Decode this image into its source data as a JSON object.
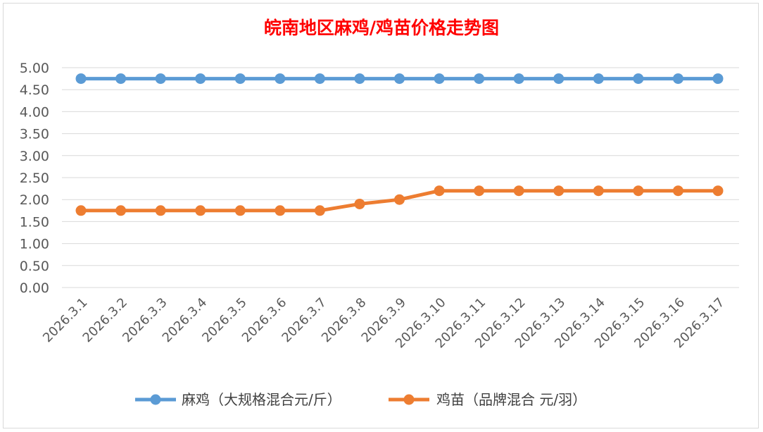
{
  "chart_data": {
    "type": "line",
    "title": "皖南地区麻鸡/鸡苗价格走势图",
    "xlabel": "",
    "ylabel": "",
    "categories": [
      "2026.3.1",
      "2026.3.2",
      "2026.3.3",
      "2026.3.4",
      "2026.3.5",
      "2026.3.6",
      "2026.3.7",
      "2026.3.8",
      "2026.3.9",
      "2026.3.10",
      "2026.3.11",
      "2026.3.12",
      "2026.3.13",
      "2026.3.14",
      "2026.3.15",
      "2026.3.16",
      "2026.3.17"
    ],
    "ylim": [
      0,
      5
    ],
    "yticks": [
      "0.00",
      "0.50",
      "1.00",
      "1.50",
      "2.00",
      "2.50",
      "3.00",
      "3.50",
      "4.00",
      "4.50",
      "5.00"
    ],
    "grid": true,
    "legend_position": "bottom",
    "series": [
      {
        "name": "麻鸡（大规格混合元/斤）",
        "color": "#5b9bd5",
        "values": [
          4.75,
          4.75,
          4.75,
          4.75,
          4.75,
          4.75,
          4.75,
          4.75,
          4.75,
          4.75,
          4.75,
          4.75,
          4.75,
          4.75,
          4.75,
          4.75,
          4.75
        ]
      },
      {
        "name": "鸡苗（品牌混合 元/羽）",
        "color": "#ed7d31",
        "values": [
          1.75,
          1.75,
          1.75,
          1.75,
          1.75,
          1.75,
          1.75,
          1.9,
          2.0,
          2.2,
          2.2,
          2.2,
          2.2,
          2.2,
          2.2,
          2.2,
          2.2
        ]
      }
    ]
  }
}
